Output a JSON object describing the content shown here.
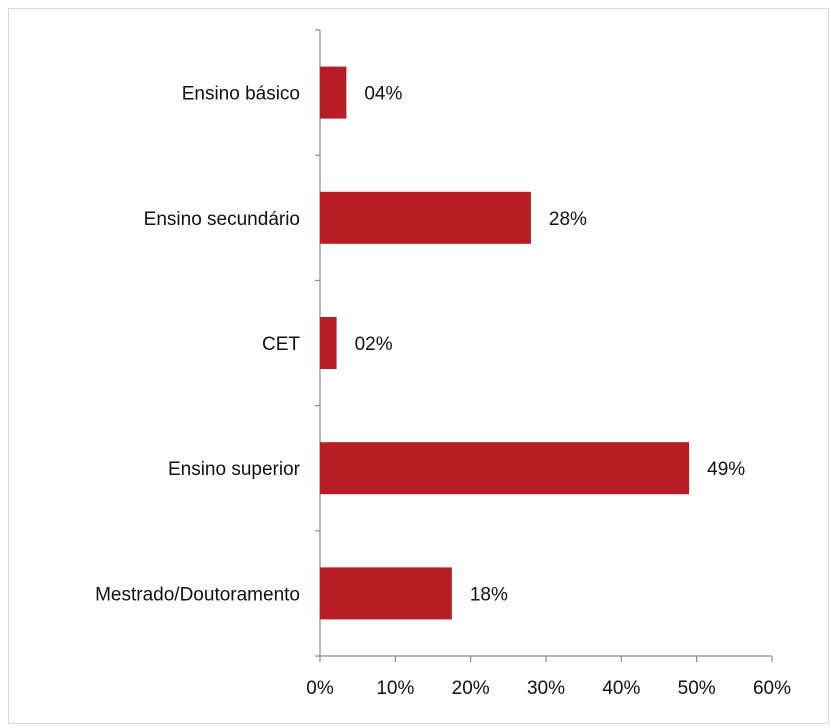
{
  "chart_data": {
    "type": "bar",
    "orientation": "horizontal",
    "categories": [
      "Ensino básico",
      "Ensino secundário",
      "CET",
      "Ensino superior",
      "Mestrado/Doutoramento"
    ],
    "values": [
      3.5,
      28,
      2.2,
      49,
      17.5
    ],
    "data_labels": [
      "04%",
      "28%",
      "02%",
      "49%",
      "18%"
    ],
    "xlim": [
      0,
      60
    ],
    "x_ticks": [
      0,
      10,
      20,
      30,
      40,
      50,
      60
    ],
    "x_tick_labels": [
      "0%",
      "10%",
      "20%",
      "30%",
      "40%",
      "50%",
      "60%"
    ],
    "title": "",
    "xlabel": "",
    "ylabel": "",
    "bar_color": "#b81c25",
    "grid": false,
    "legend": "none"
  }
}
